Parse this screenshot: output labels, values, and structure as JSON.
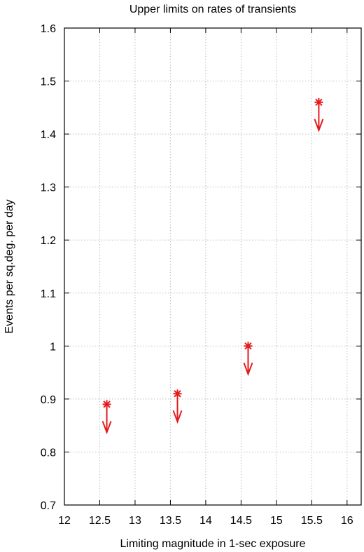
{
  "chart_data": {
    "type": "scatter",
    "title": "Upper limits on rates of transients",
    "xlabel": "Limiting magnitude in 1-sec exposure",
    "ylabel": "Events per sq.deg. per day",
    "xlim": [
      12,
      16.2
    ],
    "ylim": [
      0.7,
      1.6
    ],
    "xticks": [
      "12",
      "12.5",
      "13",
      "13.5",
      "14",
      "14.5",
      "15",
      "15.5",
      "16"
    ],
    "yticks": [
      "0.7",
      "0.8",
      "0.9",
      "1",
      "1.1",
      "1.2",
      "1.3",
      "1.4",
      "1.5",
      "1.6"
    ],
    "grid": true,
    "marker": "asterisk with downward arrow (upper limit)",
    "color": "#e41a1c",
    "series": [
      {
        "x": [
          12.6,
          13.6,
          14.6,
          15.6
        ],
        "y": [
          0.89,
          0.91,
          1.0,
          1.46
        ],
        "upper_limit": true
      }
    ]
  }
}
